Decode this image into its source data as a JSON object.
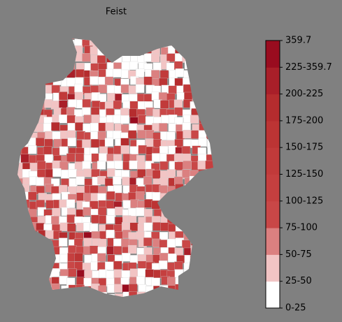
{
  "title": "Feist",
  "colorbar": {
    "labels": [
      "0-25",
      "25-50",
      "50-75",
      "75-100",
      "100-125",
      "125-150",
      "150-175",
      "175-200",
      "200-225",
      "225-359.7",
      "359.7"
    ],
    "colors": [
      "#ffffff",
      "#f2c4c4",
      "#db8080",
      "#c94747",
      "#c53f3f",
      "#c13a3a",
      "#bc3434",
      "#b52c2e",
      "#a91f29",
      "#990c1f"
    ]
  }
}
